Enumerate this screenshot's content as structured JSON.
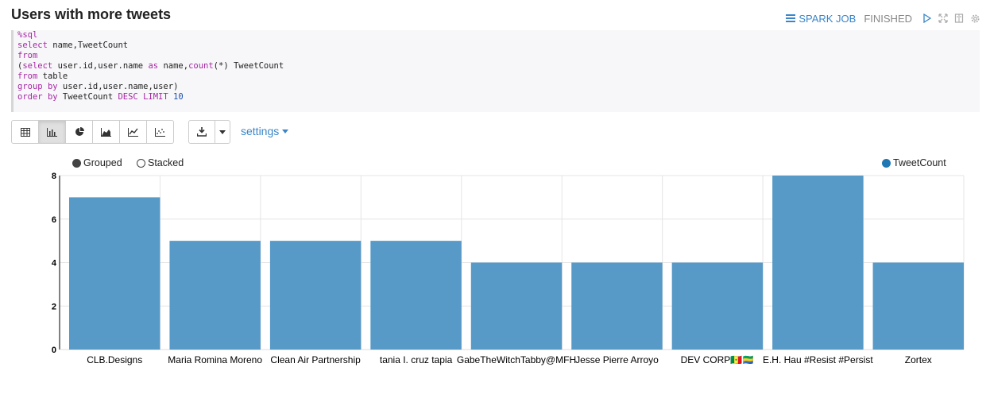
{
  "paragraph": {
    "title": "Users with more tweets",
    "status": {
      "job_label": "SPARK JOB",
      "state": "FINISHED"
    },
    "icons": [
      "table-icon",
      "list-icon",
      "run-icon",
      "expand-icon",
      "book-icon",
      "gear-icon"
    ]
  },
  "code": {
    "lines": [
      "%sql",
      "select name,TweetCount",
      "from",
      "(select user.id,user.name as name,count(*) TweetCount",
      "from table",
      "group by user.id,user.name,user)",
      "order by TweetCount DESC LIMIT 10"
    ]
  },
  "toolbar": {
    "views": [
      "table",
      "bar-chart",
      "pie-chart",
      "area-chart",
      "line-chart",
      "scatter-chart"
    ],
    "active_view": "bar-chart",
    "settings_label": "settings"
  },
  "chart_options": {
    "grouped_label": "Grouped",
    "stacked_label": "Stacked",
    "selected": "Grouped"
  },
  "chart_data": {
    "type": "bar",
    "categories": [
      "CLB.Designs",
      "Maria Romina Moreno",
      "Clean Air Partnership",
      "tania I. cruz tapia",
      "GabeTheWitchTabby@MFH",
      "Jesse Pierre Arroyo",
      "DEV CORP🇸🇳🇬🇦",
      "E.H. Hau #Resist #Persist",
      "Zortex"
    ],
    "series": [
      {
        "name": "TweetCount",
        "values": [
          7,
          5,
          5,
          5,
          4,
          4,
          4,
          8,
          4
        ]
      }
    ],
    "yticks": [
      0,
      2,
      4,
      6,
      8
    ],
    "ylim": [
      0,
      8
    ],
    "color": "#5799c7",
    "grid": true,
    "legend": "top-right"
  }
}
